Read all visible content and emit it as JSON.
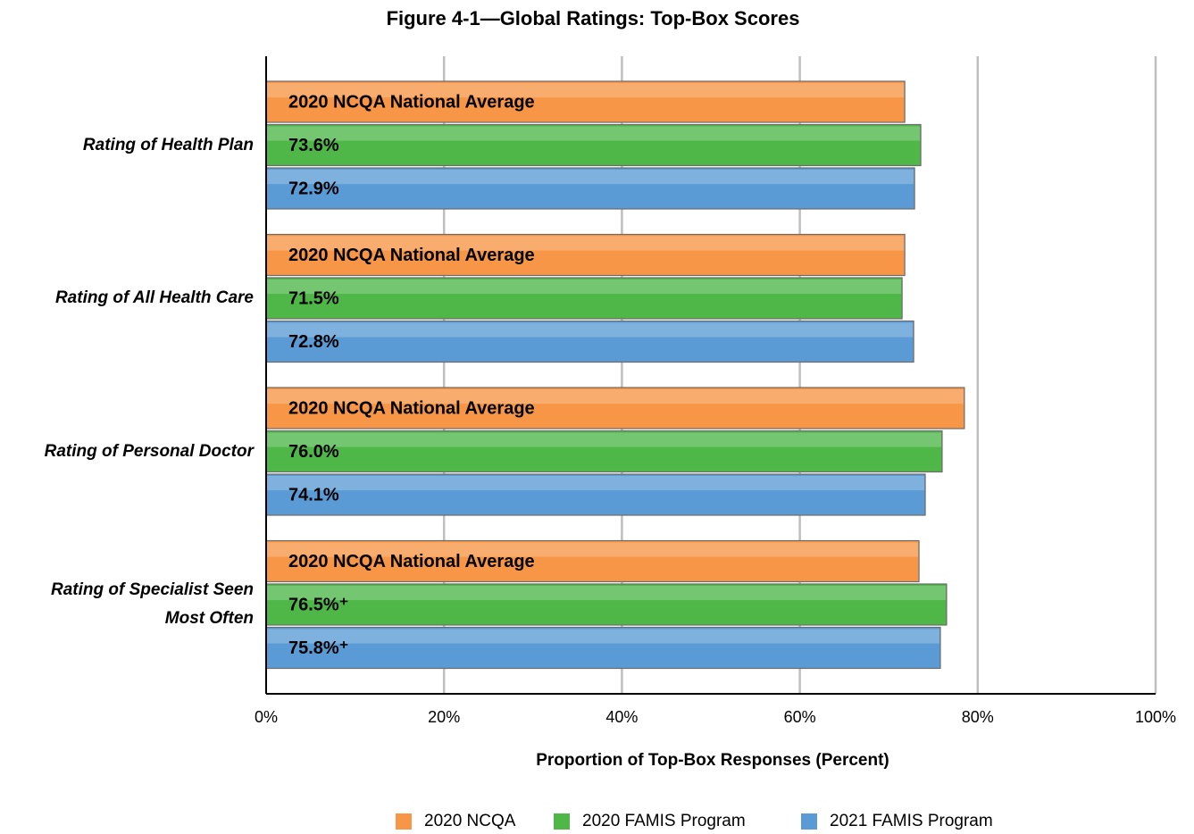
{
  "chart_data": {
    "type": "hbar",
    "title": "Figure 4-1—Global Ratings: Top-Box Scores",
    "x_label": "Proportion of Top-Box Responses (Percent)",
    "categories": [
      "Rating of Health Plan",
      "Rating of All Health Care",
      "Rating of Personal Doctor",
      "Rating of Specialist Seen Most Often"
    ],
    "series": [
      {
        "name": "2020 NCQA",
        "color": "#f79646",
        "values": [
          71.8,
          71.8,
          78.5,
          73.4
        ],
        "bar_label": "2020 NCQA National Average"
      },
      {
        "name": "2020 FAMIS Program",
        "color": "#4fb748",
        "values": [
          73.6,
          71.5,
          76.0,
          76.5
        ],
        "value_labels": [
          "73.6%",
          "71.5%",
          "76.0%",
          "76.5%⁺"
        ]
      },
      {
        "name": "2021 FAMIS Program",
        "color": "#5b9bd5",
        "values": [
          72.9,
          72.8,
          74.1,
          75.8
        ],
        "value_labels": [
          "72.9%",
          "72.8%",
          "74.1%",
          "75.8%⁺"
        ]
      }
    ],
    "xlim": [
      0,
      100
    ],
    "xticks": [
      {
        "value": 0,
        "label": "0%"
      },
      {
        "value": 20,
        "label": "20%"
      },
      {
        "value": 40,
        "label": "40%"
      },
      {
        "value": 60,
        "label": "60%"
      },
      {
        "value": 80,
        "label": "80%"
      },
      {
        "value": 100,
        "label": "100%"
      }
    ],
    "grid": true,
    "legend": "bottom"
  }
}
